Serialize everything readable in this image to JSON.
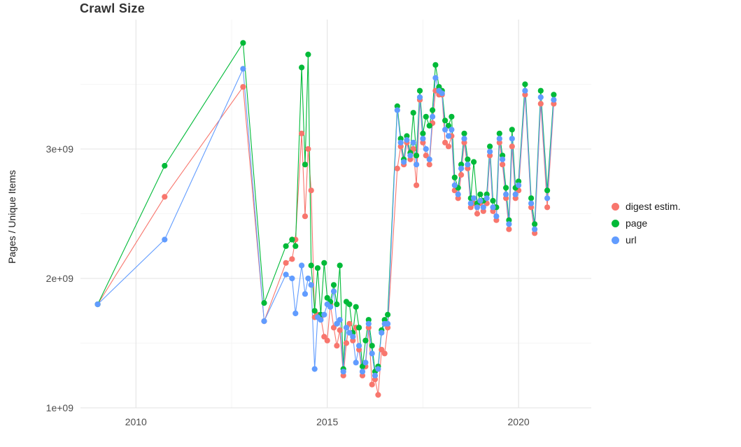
{
  "title": "Crawl Size",
  "y_axis": {
    "label": "Pages / Unique Items",
    "ticks": [
      "1e+09",
      "2e+09",
      "3e+09"
    ],
    "tick_values": [
      1,
      2,
      3
    ]
  },
  "x_axis": {
    "ticks": [
      "2010",
      "2015",
      "2020"
    ],
    "tick_values": [
      2010,
      2015,
      2020
    ]
  },
  "legend": {
    "position": "right",
    "items": [
      {
        "label": "digest estim.",
        "color": "#F8766D"
      },
      {
        "label": "page",
        "color": "#00BA38"
      },
      {
        "label": "url",
        "color": "#619CFF"
      }
    ]
  },
  "colors": {
    "grid_major": "#E3E3E3",
    "grid_minor": "#F2F2F2",
    "tick_text": "#4D4D4D",
    "background": "#FFFFFF"
  },
  "chart_data": {
    "type": "line",
    "title": "Crawl Size",
    "xlabel": "",
    "ylabel": "Pages / Unique Items",
    "unit_note": "series values in billions (x1e9) of pages / unique items, x in decimal years",
    "xlim": [
      2008.55,
      2021.9
    ],
    "ylim_billions": [
      1.0,
      4.0
    ],
    "grid": true,
    "legend_position": "right",
    "x_ticks": [
      {
        "label": "2010",
        "value": 2010
      },
      {
        "label": "2015",
        "value": 2015
      },
      {
        "label": "2020",
        "value": 2020
      }
    ],
    "x_minor_ticks": [
      2012.5,
      2017.5
    ],
    "y_ticks": [
      {
        "label": "1e+09",
        "value": 1
      },
      {
        "label": "2e+09",
        "value": 2
      },
      {
        "label": "3e+09",
        "value": 3
      }
    ],
    "y_minor_ticks": [
      1.5,
      2.5,
      3.5
    ],
    "x": [
      2009.0,
      2010.75,
      2012.8,
      2013.35,
      2013.92,
      2014.08,
      2014.17,
      2014.33,
      2014.42,
      2014.5,
      2014.58,
      2014.67,
      2014.75,
      2014.83,
      2014.92,
      2015.0,
      2015.08,
      2015.17,
      2015.25,
      2015.33,
      2015.42,
      2015.5,
      2015.58,
      2015.67,
      2015.75,
      2015.83,
      2015.92,
      2016.0,
      2016.08,
      2016.17,
      2016.25,
      2016.33,
      2016.42,
      2016.5,
      2016.58,
      2016.83,
      2016.92,
      2017.0,
      2017.08,
      2017.17,
      2017.25,
      2017.33,
      2017.42,
      2017.5,
      2017.58,
      2017.67,
      2017.75,
      2017.83,
      2017.92,
      2018.0,
      2018.08,
      2018.17,
      2018.25,
      2018.33,
      2018.42,
      2018.5,
      2018.58,
      2018.67,
      2018.75,
      2018.83,
      2018.92,
      2019.0,
      2019.08,
      2019.17,
      2019.25,
      2019.33,
      2019.42,
      2019.5,
      2019.58,
      2019.67,
      2019.75,
      2019.83,
      2019.92,
      2020.0,
      2020.17,
      2020.33,
      2020.42,
      2020.58,
      2020.75,
      2020.92
    ],
    "series": [
      {
        "name": "digest estim.",
        "color": "#F8766D",
        "values": [
          1.8,
          2.63,
          3.48,
          1.67,
          2.12,
          2.15,
          2.3,
          3.12,
          2.48,
          3.0,
          2.68,
          1.7,
          1.72,
          1.7,
          1.55,
          1.52,
          1.8,
          1.62,
          1.48,
          1.6,
          1.25,
          1.5,
          1.65,
          1.52,
          1.62,
          1.45,
          1.25,
          1.32,
          1.62,
          1.18,
          1.22,
          1.1,
          1.45,
          1.42,
          1.62,
          2.85,
          3.02,
          2.88,
          3.05,
          2.92,
          3.0,
          2.72,
          3.38,
          3.05,
          2.95,
          2.88,
          3.2,
          3.45,
          3.42,
          3.42,
          3.05,
          3.02,
          3.1,
          2.68,
          2.62,
          2.8,
          3.05,
          2.85,
          2.55,
          2.58,
          2.5,
          2.58,
          2.52,
          2.58,
          2.95,
          2.52,
          2.45,
          3.05,
          2.88,
          2.62,
          2.38,
          3.02,
          2.62,
          2.68,
          3.42,
          2.55,
          2.35,
          3.35,
          2.55,
          3.35
        ]
      },
      {
        "name": "page",
        "color": "#00BA38",
        "values": [
          1.8,
          2.87,
          3.82,
          1.81,
          2.25,
          2.3,
          2.25,
          3.63,
          2.88,
          3.73,
          2.1,
          1.75,
          2.08,
          1.72,
          2.12,
          1.85,
          1.82,
          1.95,
          1.8,
          2.1,
          1.3,
          1.82,
          1.8,
          1.58,
          1.78,
          1.62,
          1.32,
          1.52,
          1.68,
          1.48,
          1.28,
          1.32,
          1.6,
          1.68,
          1.72,
          3.33,
          3.08,
          2.92,
          3.1,
          2.97,
          3.28,
          2.95,
          3.45,
          3.12,
          3.25,
          3.18,
          3.3,
          3.65,
          3.48,
          3.45,
          3.22,
          3.18,
          3.25,
          2.78,
          2.7,
          2.88,
          3.12,
          2.92,
          2.62,
          2.9,
          2.58,
          2.65,
          2.6,
          2.65,
          3.02,
          2.6,
          2.55,
          3.12,
          2.95,
          2.7,
          2.45,
          3.15,
          2.7,
          2.75,
          3.5,
          2.62,
          2.42,
          3.45,
          2.68,
          3.42
        ]
      },
      {
        "name": "url",
        "color": "#619CFF",
        "values": [
          1.8,
          2.3,
          3.62,
          1.67,
          2.03,
          2.0,
          1.73,
          2.1,
          1.88,
          2.0,
          1.95,
          1.3,
          1.7,
          1.68,
          1.72,
          1.8,
          1.78,
          1.9,
          1.65,
          1.68,
          1.28,
          1.62,
          1.58,
          1.55,
          1.35,
          1.48,
          1.28,
          1.35,
          1.65,
          1.42,
          1.25,
          1.3,
          1.58,
          1.65,
          1.65,
          3.3,
          3.05,
          2.9,
          3.07,
          2.95,
          3.05,
          2.88,
          3.4,
          3.08,
          3.0,
          2.92,
          3.25,
          3.55,
          3.45,
          3.43,
          3.15,
          3.1,
          3.15,
          2.72,
          2.65,
          2.85,
          3.08,
          2.88,
          2.58,
          2.62,
          2.55,
          2.6,
          2.55,
          2.62,
          2.98,
          2.55,
          2.48,
          3.08,
          2.92,
          2.65,
          2.42,
          3.08,
          2.65,
          2.72,
          3.45,
          2.58,
          2.38,
          3.4,
          2.62,
          3.38
        ]
      }
    ]
  }
}
